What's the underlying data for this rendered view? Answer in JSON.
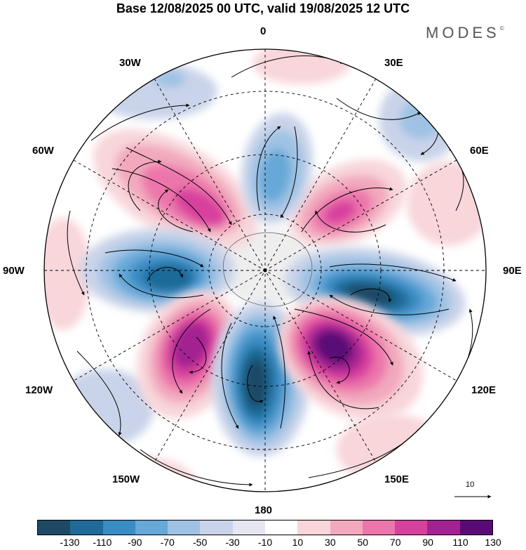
{
  "title": "Base 12/08/2025 00 UTC, valid 19/08/2025 12 UTC",
  "brand": "MODES",
  "brand_mark": "©",
  "longitude_labels": {
    "top": "0",
    "top_right": "30E",
    "right_upper": "60E",
    "right": "90E",
    "right_lower": "120E",
    "bottom_right": "150E",
    "bottom": "180",
    "bottom_left": "150W",
    "left_lower": "120W",
    "left": "90W",
    "left_upper": "60W",
    "top_left": "30W"
  },
  "reference_vector_label": "10",
  "colorbar": {
    "ticks": [
      "-130",
      "-110",
      "-90",
      "-70",
      "-50",
      "-30",
      "-10",
      "10",
      "30",
      "50",
      "70",
      "90",
      "110",
      "130"
    ],
    "colors": [
      "#1f4a66",
      "#1f6a98",
      "#3a8cc4",
      "#66a8d8",
      "#9fc2e4",
      "#c9d3e9",
      "#e6e6f2",
      "#ffffff",
      "#f8d6da",
      "#f2a9bd",
      "#ec76ab",
      "#d8409e",
      "#a32291",
      "#5a0a76"
    ]
  },
  "map_features": {
    "projection": "south-polar-stereographic",
    "field": "anomaly shading with wind streamlines",
    "anomaly_centers": [
      {
        "name": "positive-60w",
        "value": 90
      },
      {
        "name": "negative-90w",
        "value": -110
      },
      {
        "name": "positive-120w",
        "value": 110
      },
      {
        "name": "negative-180",
        "value": -130
      },
      {
        "name": "positive-140e",
        "value": 130
      },
      {
        "name": "negative-100e",
        "value": -130
      },
      {
        "name": "positive-45e",
        "value": 90
      },
      {
        "name": "negative-5e",
        "value": -70
      },
      {
        "name": "positive-10e",
        "value": 50
      },
      {
        "name": "negative-40e",
        "value": -50
      },
      {
        "name": "negative-40w",
        "value": -50
      },
      {
        "name": "negative-120w-north",
        "value": -30
      }
    ]
  }
}
